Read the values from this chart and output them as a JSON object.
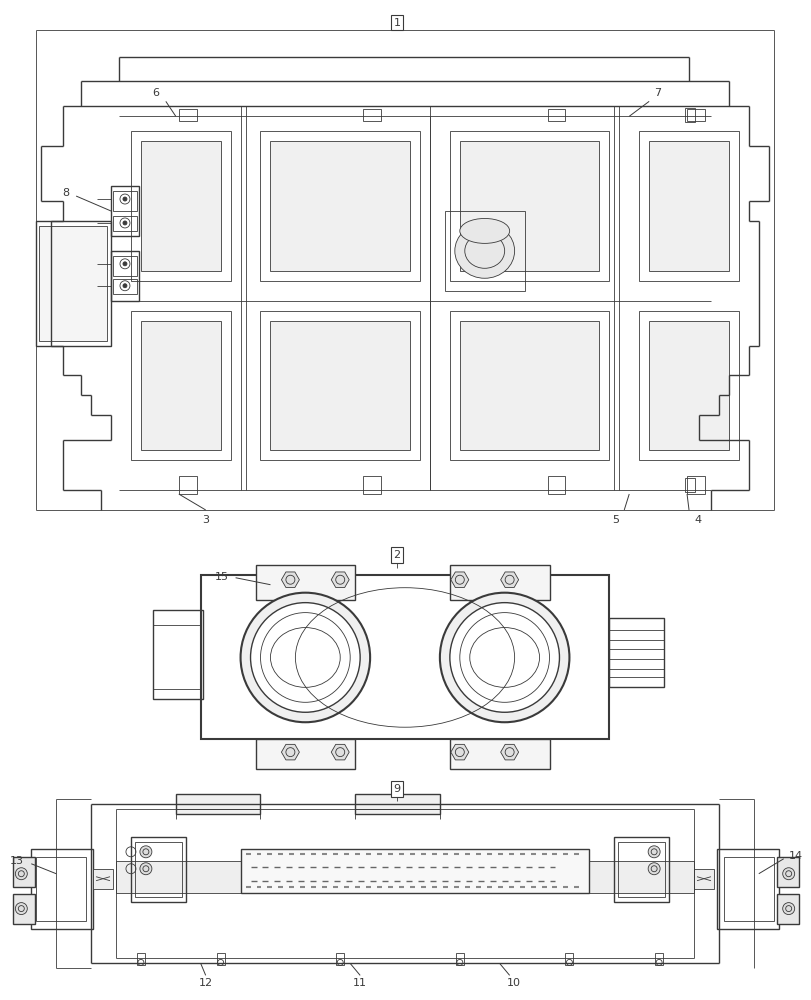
{
  "bg_color": "#ffffff",
  "lc": "#3a3a3a",
  "lw1": 0.6,
  "lw2": 1.0,
  "lw3": 1.5,
  "fig_w": 8.12,
  "fig_h": 10.0
}
